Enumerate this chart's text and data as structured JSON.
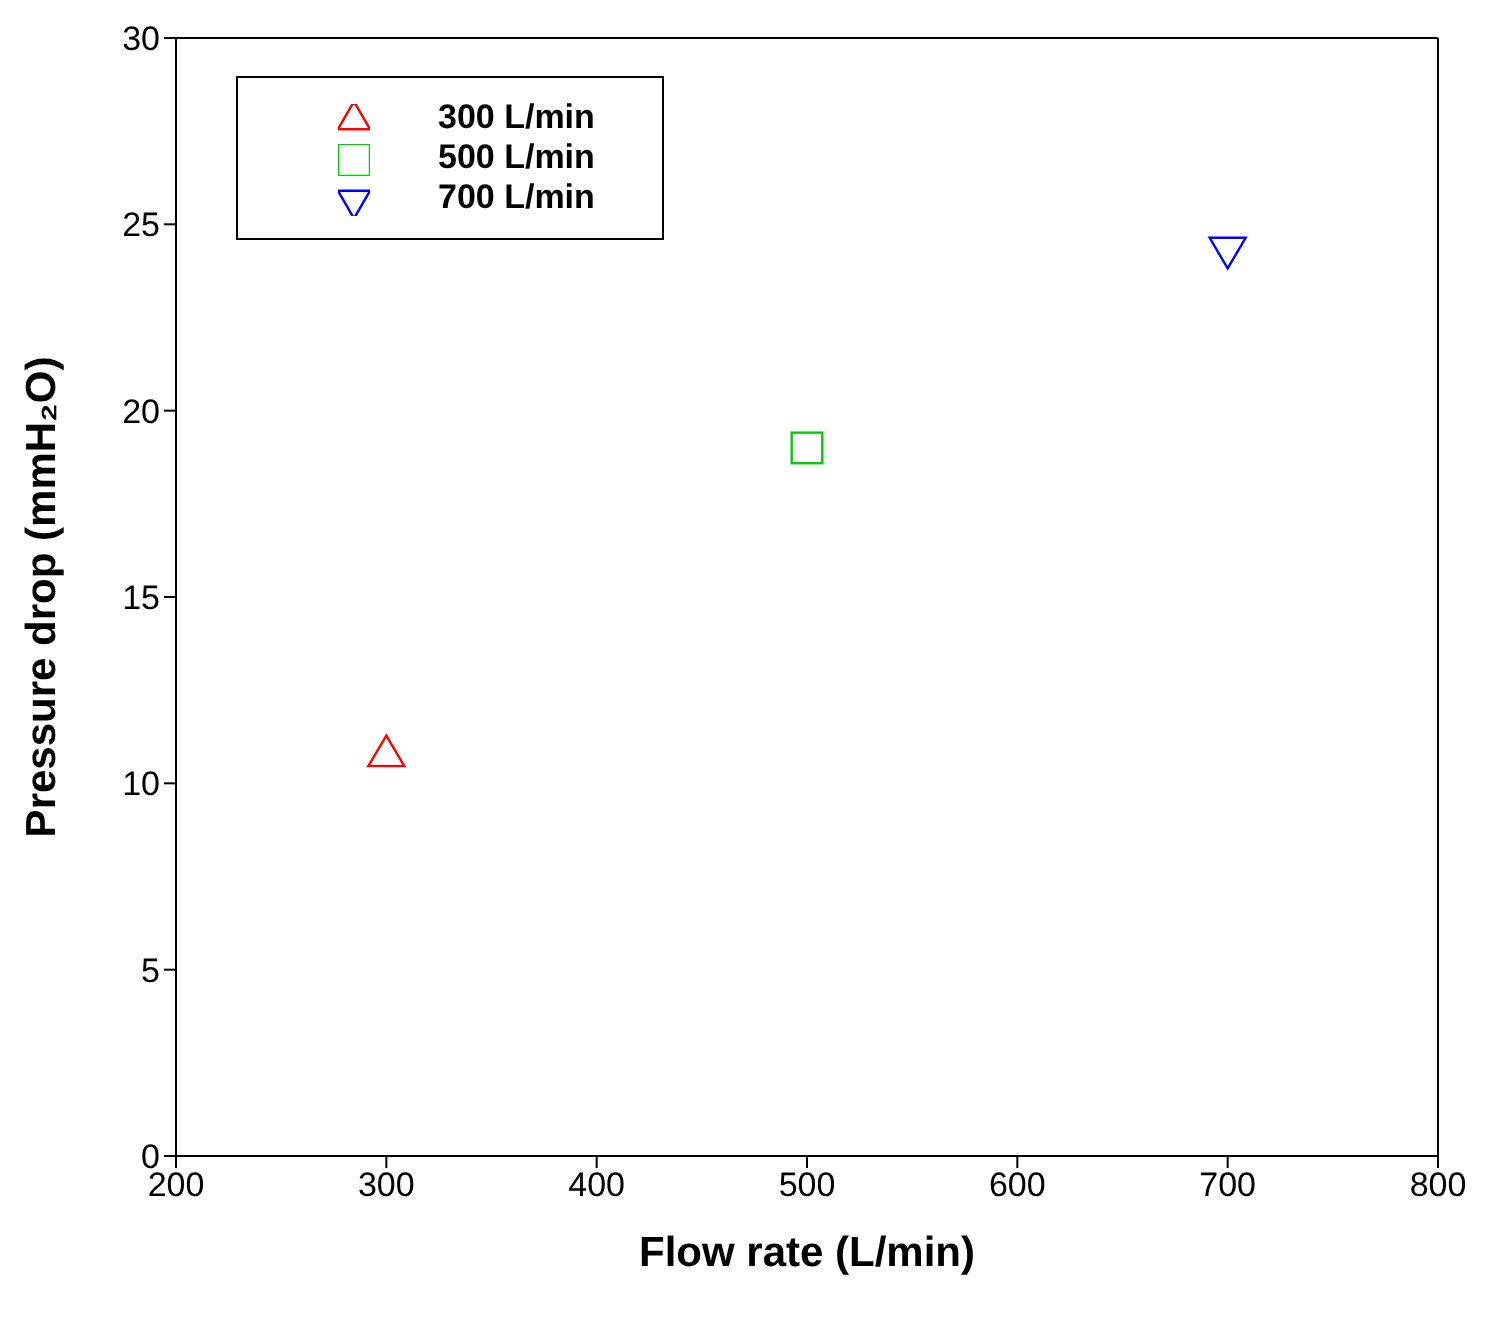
{
  "chart_data": {
    "type": "scatter",
    "xlabel": "Flow rate (L/min)",
    "ylabel": "Pressure drop (mmH₂O)",
    "series": [
      {
        "name": "300 L/min",
        "color": "#ff0000",
        "marker": "triangle",
        "x": [
          300
        ],
        "values": [
          10.8
        ]
      },
      {
        "name": "500 L/min",
        "color": "#00cc00",
        "marker": "square",
        "x": [
          500
        ],
        "values": [
          19
        ]
      },
      {
        "name": "700 L/min",
        "color": "#0000ff",
        "marker": "triangle-down",
        "x": [
          700
        ],
        "values": [
          24.3
        ]
      }
    ],
    "xlim": [
      200,
      800
    ],
    "xticks": [
      200,
      300,
      400,
      500,
      600,
      700,
      800
    ],
    "ylim": [
      0,
      30
    ],
    "yticks": [
      0,
      5,
      10,
      15,
      20,
      25,
      30
    ],
    "grid": false,
    "legend": "top left"
  }
}
